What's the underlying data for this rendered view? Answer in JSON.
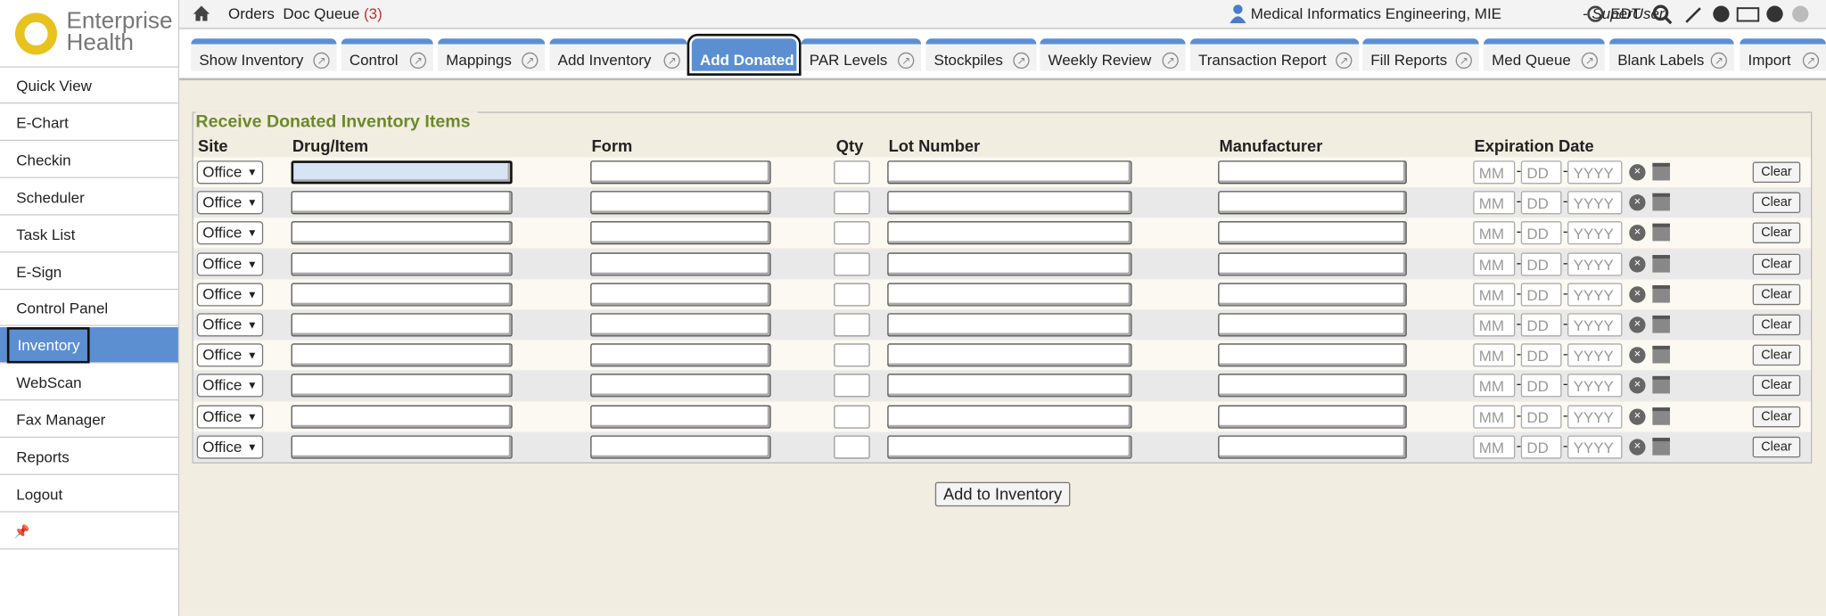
{
  "header": {
    "logo": [
      "Enterprise",
      "Health"
    ],
    "nav": [
      "Orders",
      "Doc Queue"
    ],
    "doc_queue_count": "(3)",
    "user": "Medical Informatics Engineering, MIE",
    "role": "- SuperUser",
    "timezone": "EDT"
  },
  "sidebar": {
    "items": [
      "Quick View",
      "E-Chart",
      "Checkin",
      "Scheduler",
      "Task List",
      "E-Sign",
      "Control Panel",
      "Inventory",
      "WebScan",
      "Fax Manager",
      "Reports",
      "Logout"
    ],
    "active": "Inventory"
  },
  "tabs": {
    "items": [
      "Show Inventory",
      "Control",
      "Mappings",
      "Add Inventory",
      "Add Donated",
      "PAR Levels",
      "Stockpiles",
      "Weekly Review",
      "Transaction Report",
      "Fill Reports",
      "Med Queue",
      "Blank Labels",
      "Import"
    ],
    "active": "Add Donated"
  },
  "form": {
    "title": "Receive Donated Inventory Items",
    "columns": [
      "Site",
      "Drug/Item",
      "Form",
      "Qty",
      "Lot Number",
      "Manufacturer",
      "Expiration Date"
    ],
    "rows": [
      {
        "site": "Office",
        "month": "MM",
        "day": "DD",
        "year": "YYYY",
        "clear": "Clear"
      },
      {
        "site": "Office",
        "month": "MM",
        "day": "DD",
        "year": "YYYY",
        "clear": "Clear"
      },
      {
        "site": "Office",
        "month": "MM",
        "day": "DD",
        "year": "YYYY",
        "clear": "Clear"
      },
      {
        "site": "Office",
        "month": "MM",
        "day": "DD",
        "year": "YYYY",
        "clear": "Clear"
      },
      {
        "site": "Office",
        "month": "MM",
        "day": "DD",
        "year": "YYYY",
        "clear": "Clear"
      },
      {
        "site": "Office",
        "month": "MM",
        "day": "DD",
        "year": "YYYY",
        "clear": "Clear"
      },
      {
        "site": "Office",
        "month": "MM",
        "day": "DD",
        "year": "YYYY",
        "clear": "Clear"
      },
      {
        "site": "Office",
        "month": "MM",
        "day": "DD",
        "year": "YYYY",
        "clear": "Clear"
      },
      {
        "site": "Office",
        "month": "MM",
        "day": "DD",
        "year": "YYYY",
        "clear": "Clear"
      },
      {
        "site": "Office",
        "month": "MM",
        "day": "DD",
        "year": "YYYY",
        "clear": "Clear"
      }
    ],
    "submit": "Add to Inventory"
  }
}
